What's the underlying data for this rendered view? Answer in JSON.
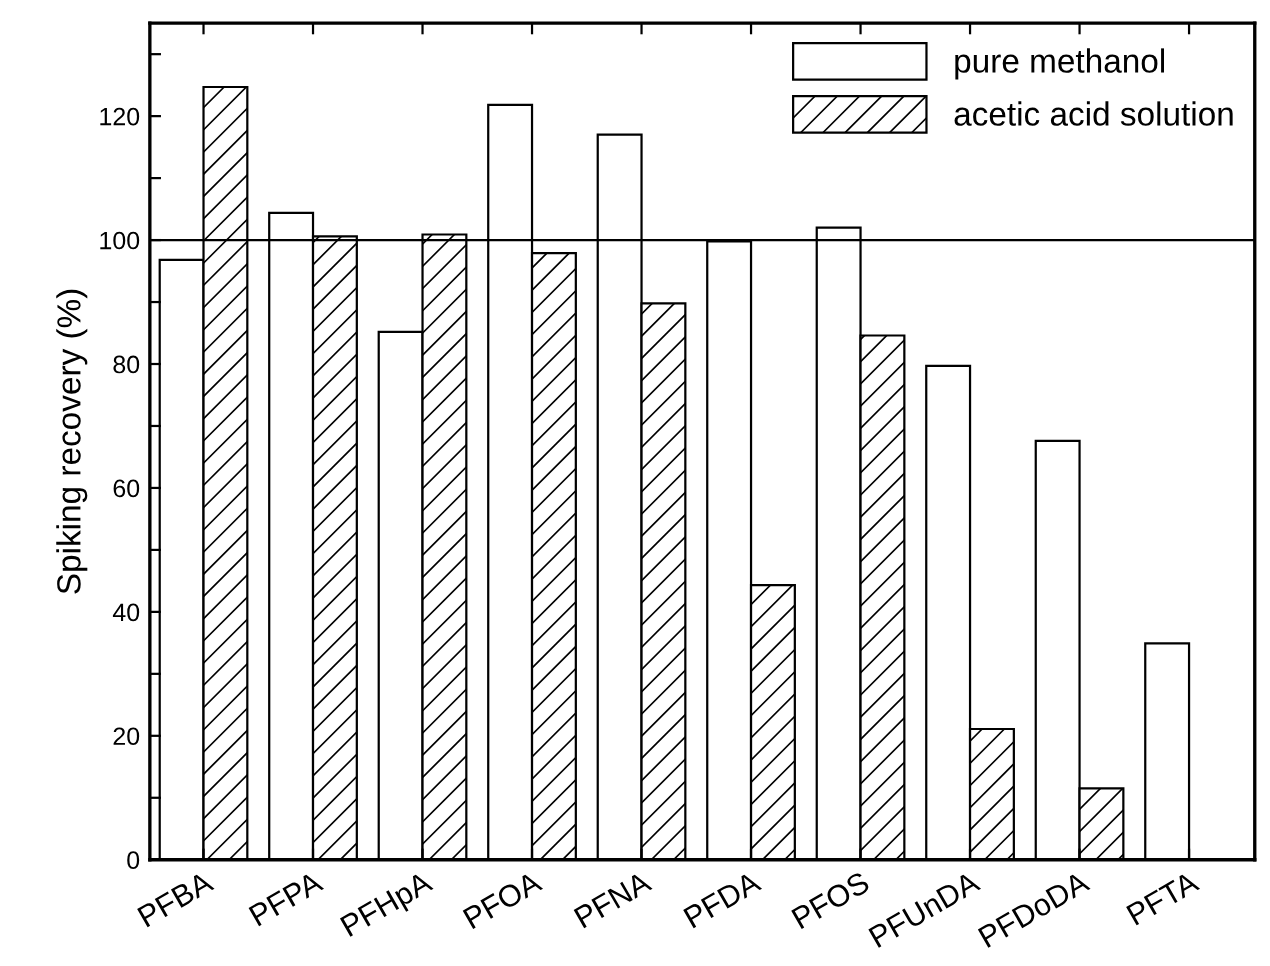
{
  "chart_data": {
    "type": "bar",
    "ylabel": "Spiking recovery (%)",
    "categories": [
      "PFBA",
      "PFPA",
      "PFHpA",
      "PFOA",
      "PFNA",
      "PFDA",
      "PFOS",
      "PFUnDA",
      "PFDoDA",
      "PFTA"
    ],
    "series": [
      {
        "name": "pure methanol",
        "color": "#ffffff",
        "values": [
          96.8,
          104.4,
          85.2,
          121.8,
          117.0,
          99.8,
          102.0,
          79.7,
          67.6,
          34.9
        ]
      },
      {
        "name": "acetic acid solution",
        "color": "#000000",
        "values": [
          124.7,
          100.6,
          100.9,
          97.9,
          89.8,
          44.3,
          84.6,
          21.1,
          11.5,
          null
        ]
      }
    ],
    "ylim": [
      0,
      135
    ],
    "yticks": [
      0,
      {
        "value": 10,
        "label": null
      },
      20,
      {
        "value": 30,
        "label": null
      },
      40,
      {
        "value": 50,
        "label": null
      },
      60,
      {
        "value": 70,
        "label": null
      },
      80,
      {
        "value": 90,
        "label": null
      },
      100,
      {
        "value": 110,
        "label": null
      },
      120,
      {
        "value": 130,
        "label": null
      }
    ],
    "ref_lines": [
      {
        "axis": "y",
        "value": 100,
        "color": "#000000"
      }
    ],
    "grid": false,
    "legend": "top right"
  }
}
